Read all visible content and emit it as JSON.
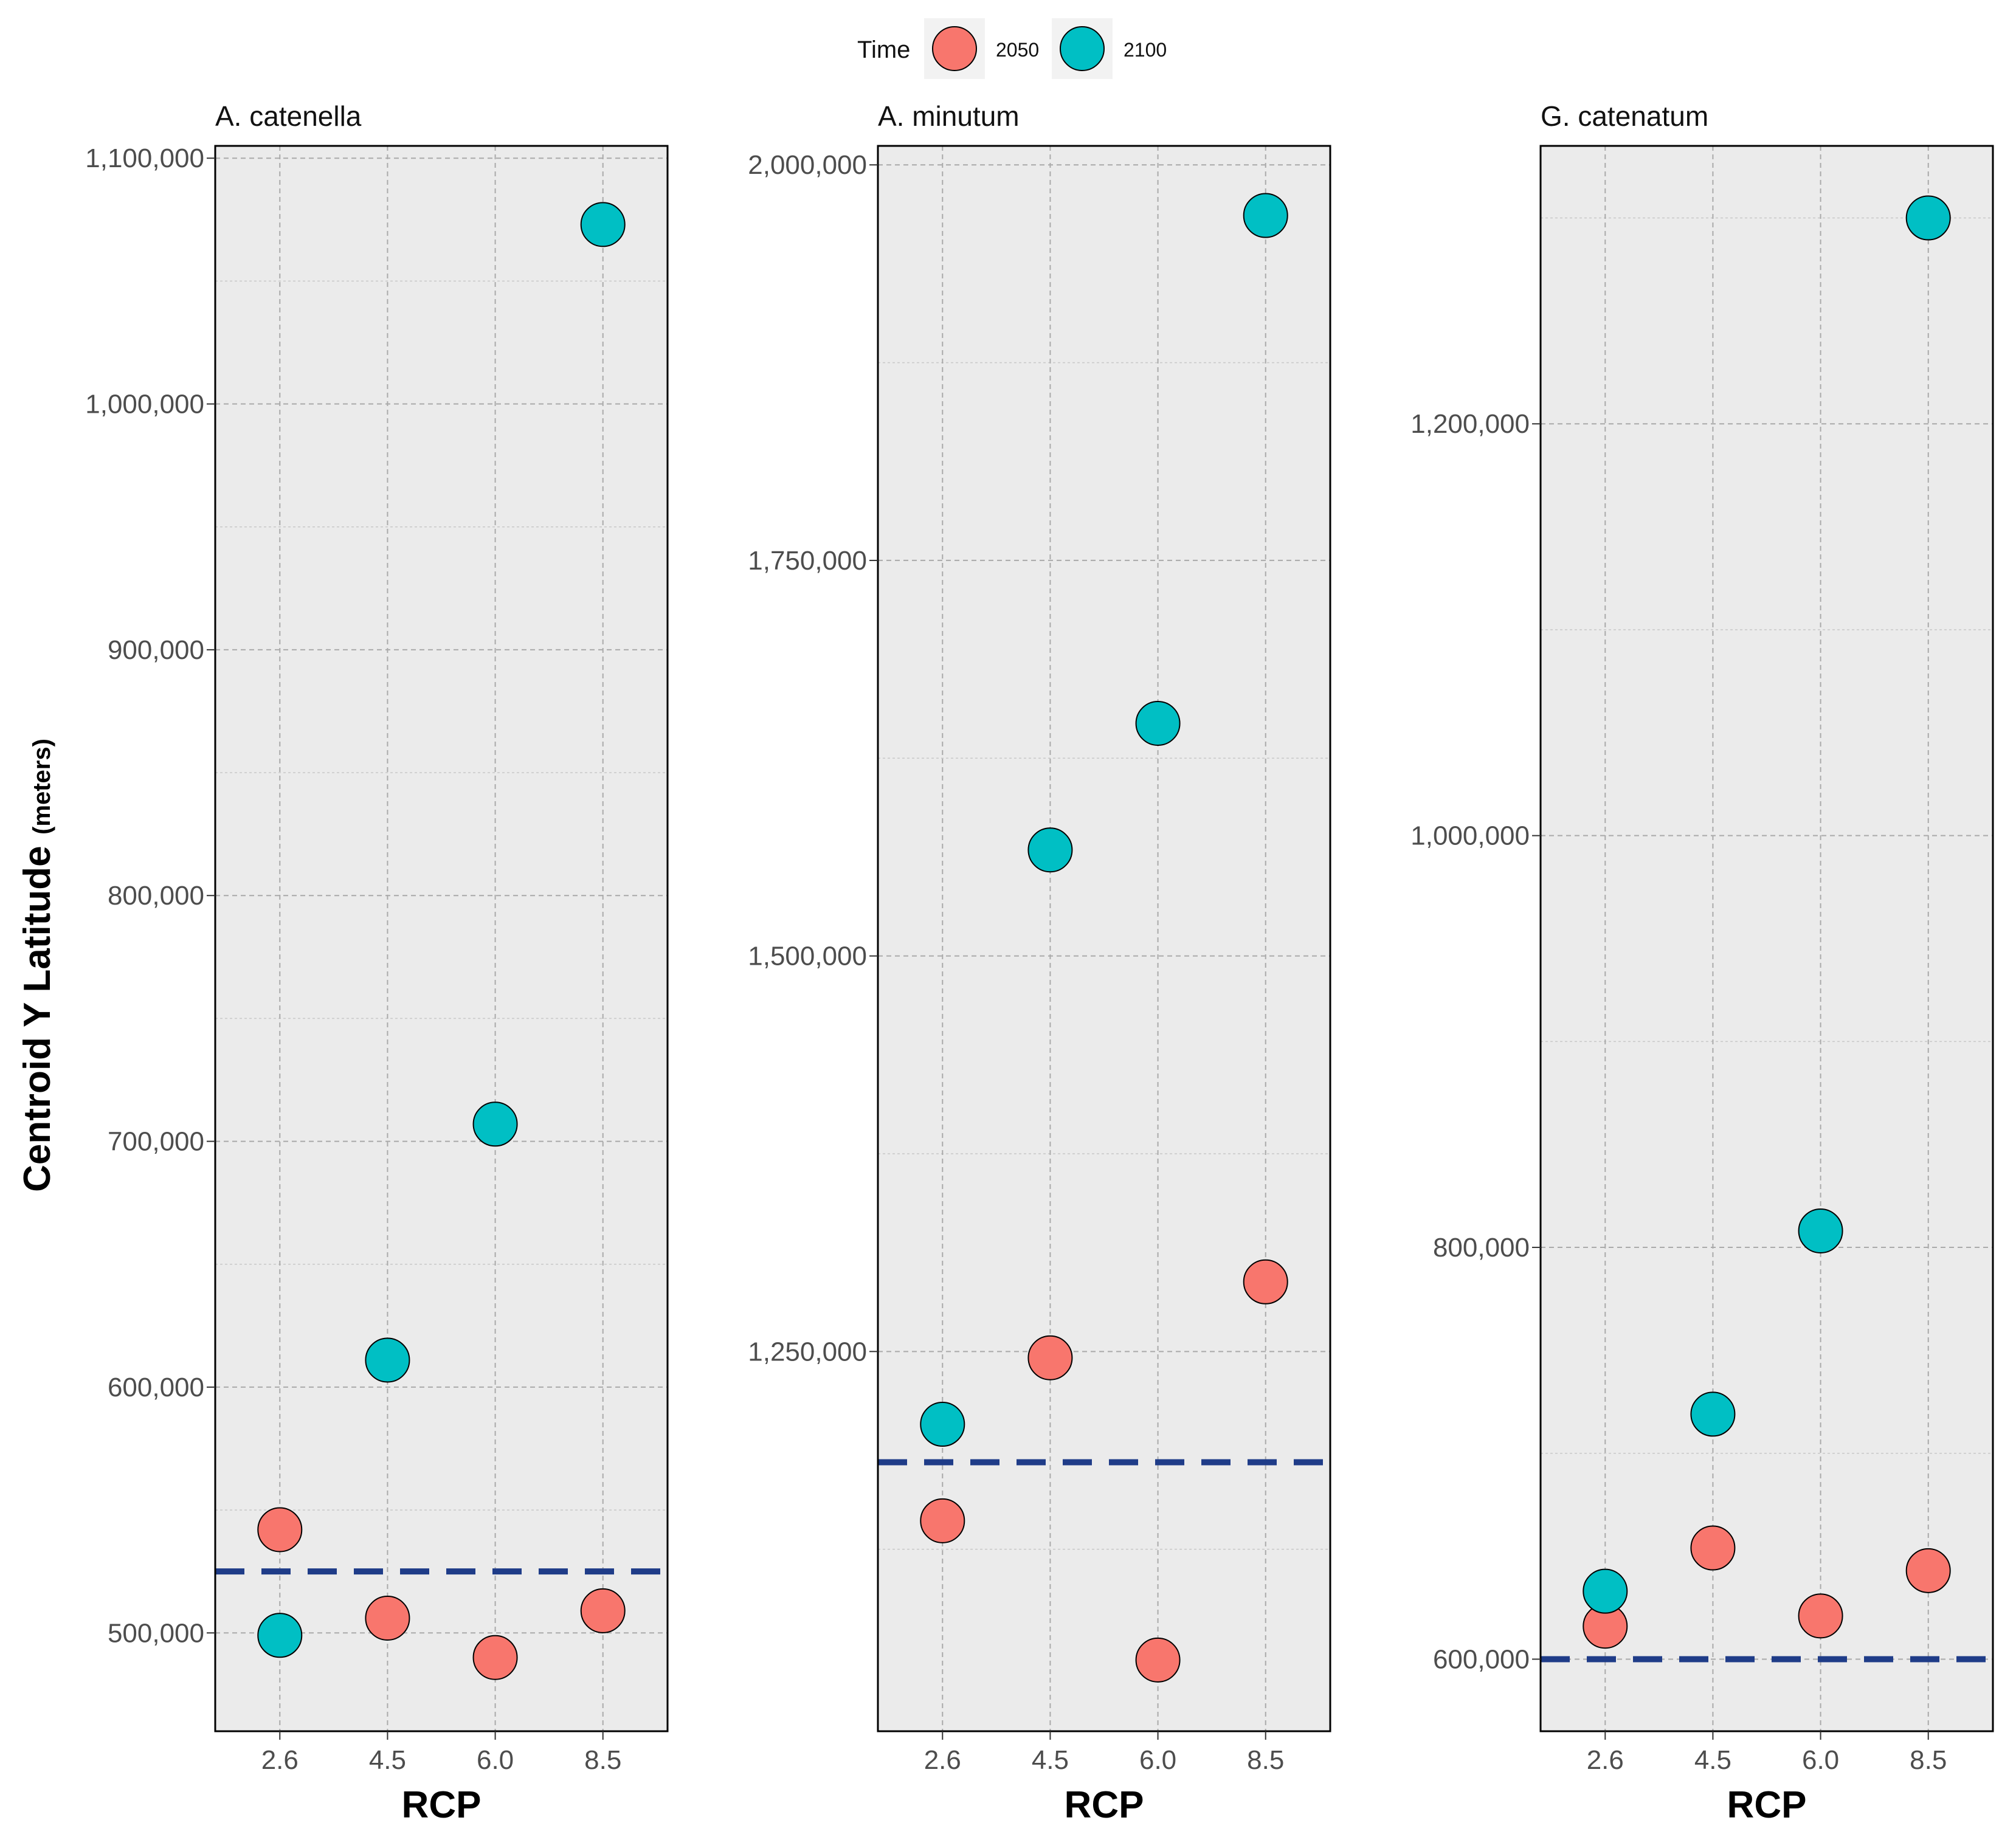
{
  "legend": {
    "title": "Time",
    "items": [
      {
        "label": "2050",
        "color": "#F8766D"
      },
      {
        "label": "2100",
        "color": "#00BFC4"
      }
    ]
  },
  "axes": {
    "ylabel_main": "Centroid Y  Latitude",
    "ylabel_unit": "(meters)",
    "xlabel": "RCP"
  },
  "colors": {
    "panel_background": "#EBEBEB",
    "grid": "#AAAAAA",
    "baseline": "#1F3C88",
    "point_outline": "#000000"
  },
  "chart_data": [
    {
      "type": "scatter",
      "title": "A. catenella",
      "categories": [
        "2.6",
        "4.5",
        "6.0",
        "8.5"
      ],
      "xlabel": "RCP",
      "ylabel": "Centroid Y  Latitude (meters)",
      "ylim": [
        460000,
        1105000
      ],
      "yticks": [
        500000,
        600000,
        700000,
        800000,
        900000,
        1000000,
        1100000
      ],
      "ytick_labels": [
        "500,000",
        "600,000",
        "700,000",
        "800,000",
        "900,000",
        "1,000,000",
        "1,100,000"
      ],
      "baseline": 525000,
      "series": [
        {
          "name": "2050",
          "values": [
            542000,
            506000,
            490000,
            509000
          ]
        },
        {
          "name": "2100",
          "values": [
            499000,
            611000,
            707000,
            1073000
          ]
        }
      ]
    },
    {
      "type": "scatter",
      "title": "A. minutum",
      "categories": [
        "2.6",
        "4.5",
        "6.0",
        "8.5"
      ],
      "xlabel": "RCP",
      "ylabel": "Centroid Y  Latitude (meters)",
      "ylim": [
        1010000,
        2012000
      ],
      "yticks": [
        1250000,
        1500000,
        1750000,
        2000000
      ],
      "ytick_labels": [
        "1,250,000",
        "1,500,000",
        "1,750,000",
        "2,000,000"
      ],
      "baseline": 1180000,
      "series": [
        {
          "name": "2050",
          "values": [
            1143000,
            1246000,
            1055000,
            1294000
          ]
        },
        {
          "name": "2100",
          "values": [
            1204000,
            1567000,
            1647000,
            1968000
          ]
        }
      ]
    },
    {
      "type": "scatter",
      "title": "G. catenatum",
      "categories": [
        "2.6",
        "4.5",
        "6.0",
        "8.5"
      ],
      "xlabel": "RCP",
      "ylabel": "Centroid Y  Latitude (meters)",
      "ylim": [
        565000,
        1335000
      ],
      "yticks": [
        600000,
        800000,
        1000000,
        1200000
      ],
      "ytick_labels": [
        "600,000",
        "800,000",
        "1,000,000",
        "1,200,000"
      ],
      "baseline": 600000,
      "series": [
        {
          "name": "2050",
          "values": [
            616000,
            654000,
            621000,
            643000
          ]
        },
        {
          "name": "2100",
          "values": [
            633000,
            719000,
            808000,
            1300000
          ]
        }
      ]
    }
  ]
}
